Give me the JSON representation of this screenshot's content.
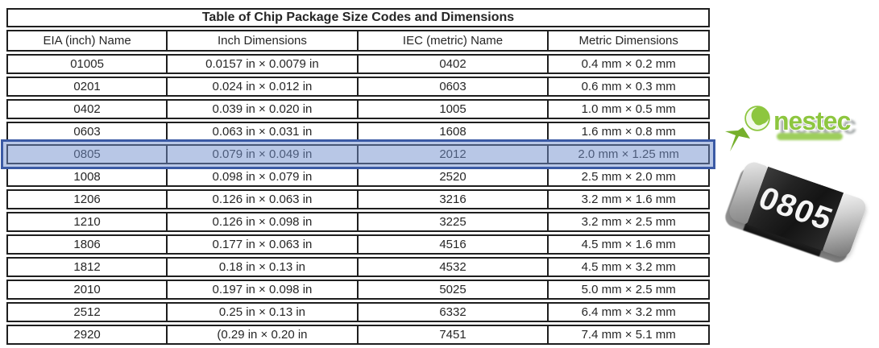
{
  "table": {
    "title": "Table of Chip Package Size Codes and Dimensions",
    "columns": [
      "EIA (inch) Name",
      "Inch Dimensions",
      "IEC (metric) Name",
      "Metric Dimensions"
    ],
    "rows": [
      [
        "01005",
        "0.0157 in × 0.0079 in",
        "0402",
        "0.4 mm × 0.2 mm"
      ],
      [
        "0201",
        "0.024 in × 0.012 in",
        "0603",
        "0.6 mm × 0.3 mm"
      ],
      [
        "0402",
        "0.039 in × 0.020 in",
        "1005",
        "1.0 mm × 0.5 mm"
      ],
      [
        "0603",
        "0.063 in × 0.031 in",
        "1608",
        "1.6 mm × 0.8 mm"
      ],
      [
        "0805",
        "0.079 in × 0.049 in",
        "2012",
        "2.0 mm × 1.25 mm"
      ],
      [
        "1008",
        "0.098 in × 0.079 in",
        "2520",
        "2.5 mm × 2.0 mm"
      ],
      [
        "1206",
        "0.126 in × 0.063 in",
        "3216",
        "3.2 mm × 1.6 mm"
      ],
      [
        "1210",
        "0.126 in × 0.098 in",
        "3225",
        "3.2 mm × 2.5 mm"
      ],
      [
        "1806",
        "0.177 in × 0.063 in",
        "4516",
        "4.5 mm × 1.6 mm"
      ],
      [
        "1812",
        "0.18 in × 0.13 in",
        "4532",
        "4.5 mm × 3.2 mm"
      ],
      [
        "2010",
        "0.197 in × 0.098 in",
        "5025",
        "5.0 mm × 2.5 mm"
      ],
      [
        "2512",
        "0.25 in × 0.13 in",
        "6332",
        "6.4 mm × 3.2 mm"
      ],
      [
        "2920",
        "(0.29 in × 0.20 in",
        "7451",
        "7.4 mm × 5.1 mm"
      ]
    ],
    "highlighted_row_index": 4,
    "highlighted_row_name": "0805"
  },
  "highlight": {
    "fill": "rgba(114,143,205,0.5)",
    "border_color": "#3b5aa5"
  },
  "logo": {
    "text": "nestec",
    "green": "#8dc63f",
    "dark_green": "#6fa32c"
  },
  "resistor": {
    "label": "0805",
    "body_color": "#1c1c1c",
    "cap_color": "#b5b5b5"
  }
}
